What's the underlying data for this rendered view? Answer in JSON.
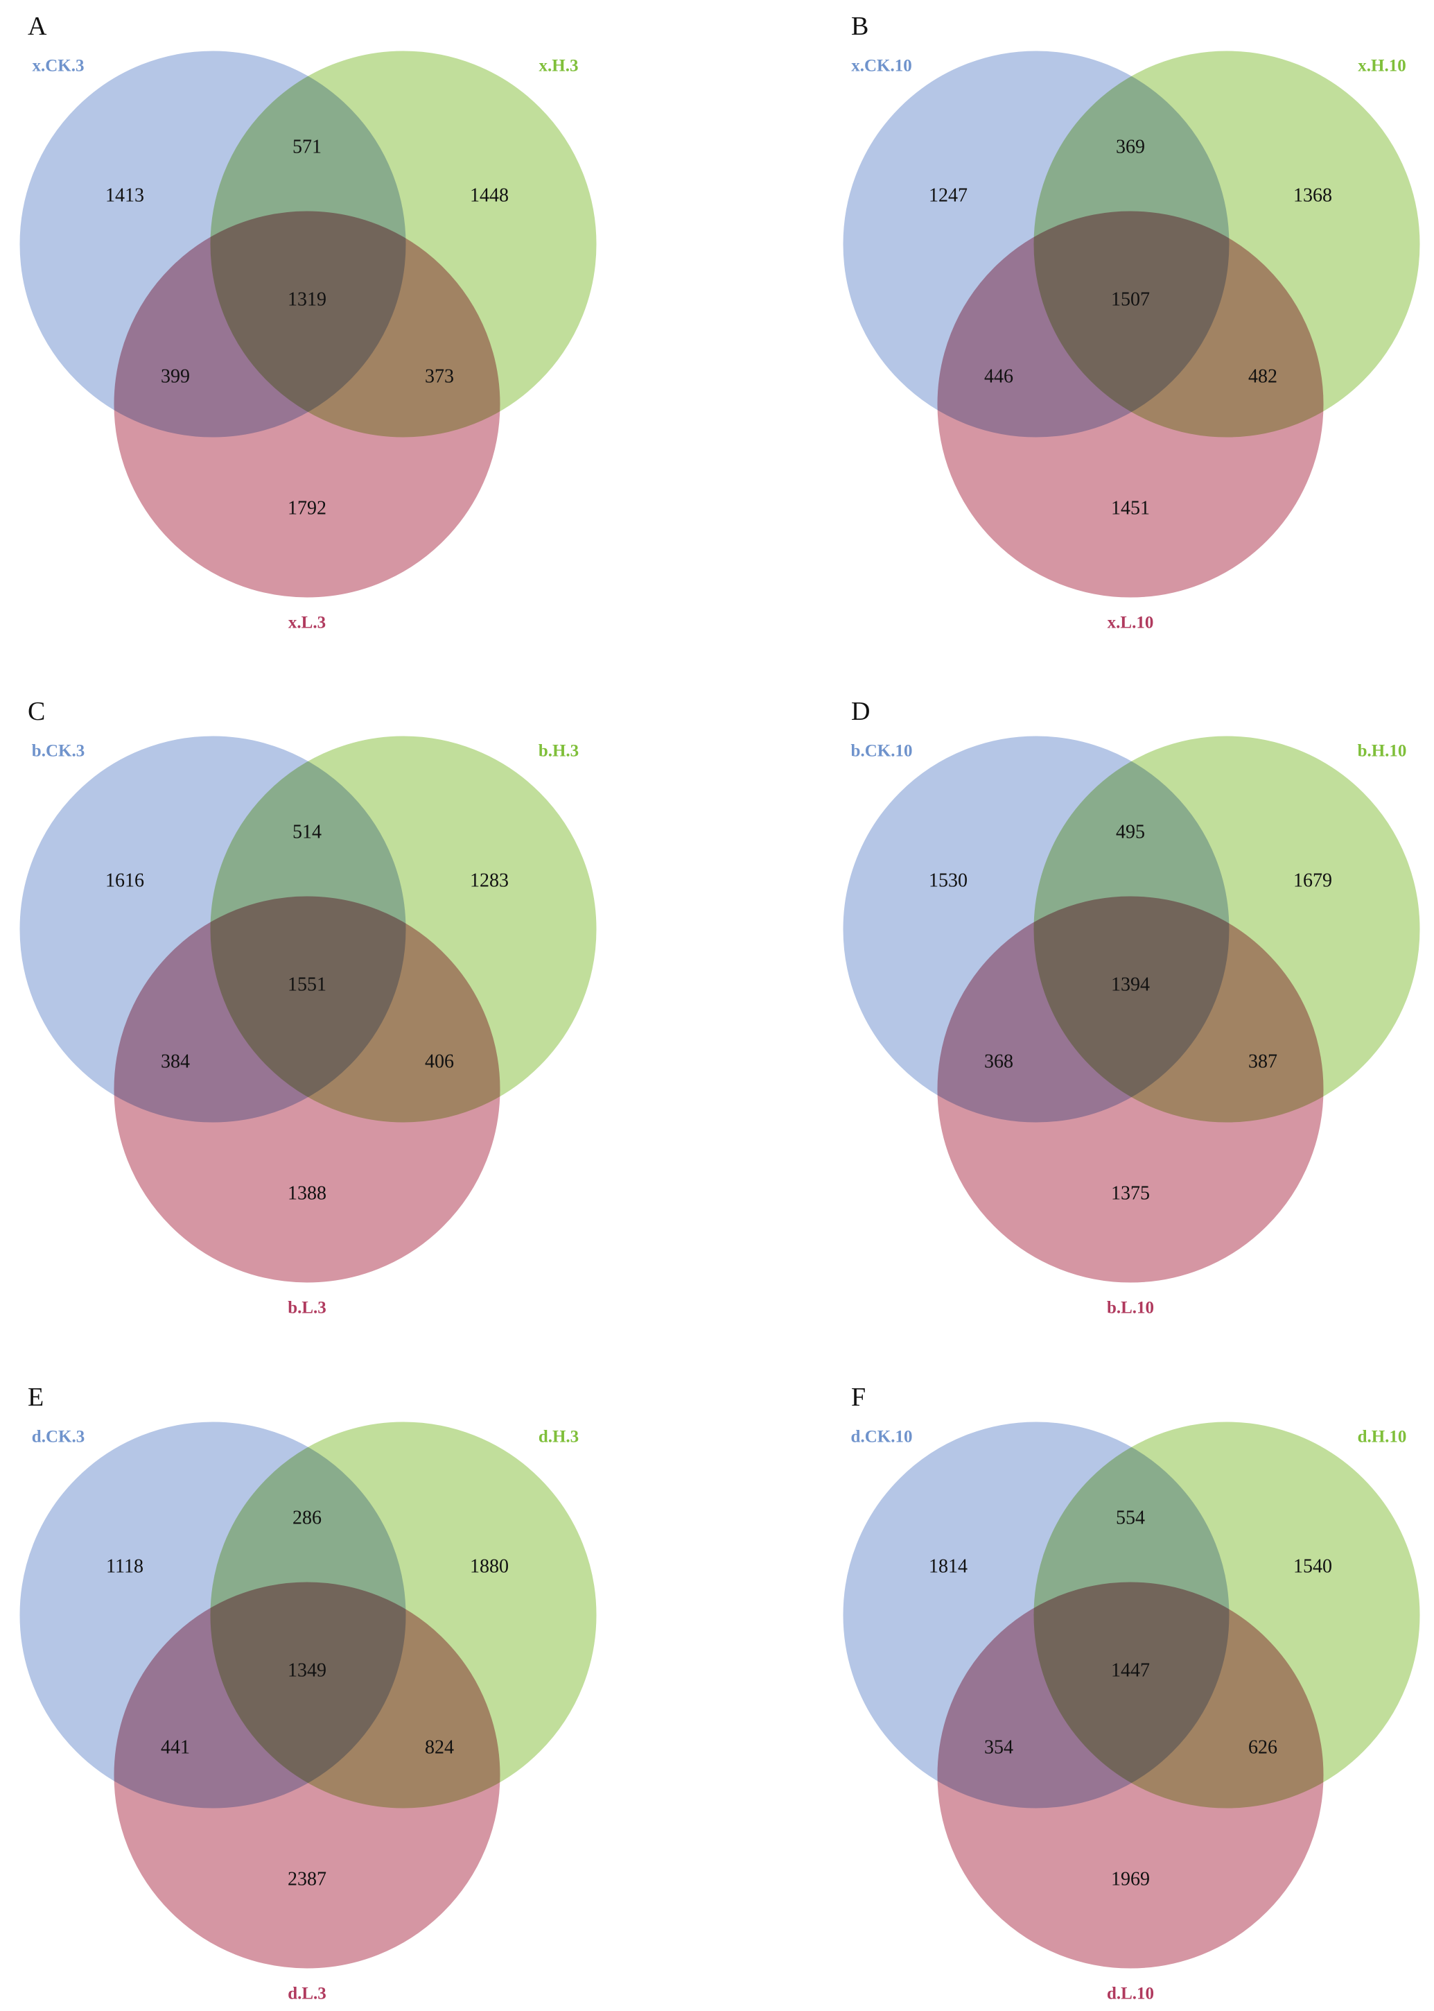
{
  "figure": {
    "colors": {
      "set_a": "#b5c6e6",
      "set_b": "#c1de9b",
      "set_c": "#d596a3",
      "label_a": "#6f93cc",
      "label_b": "#7fbf3a",
      "label_c": "#b03a5e"
    },
    "panels": [
      {
        "letter": "A",
        "labels": {
          "a": "x.CK.3",
          "b": "x.H.3",
          "c": "x.L.3"
        },
        "counts": {
          "only_a": "1413",
          "only_b": "1448",
          "only_c": "1792",
          "ab": "571",
          "ac": "399",
          "bc": "373",
          "abc": "1319"
        }
      },
      {
        "letter": "B",
        "labels": {
          "a": "x.CK.10",
          "b": "x.H.10",
          "c": "x.L.10"
        },
        "counts": {
          "only_a": "1247",
          "only_b": "1368",
          "only_c": "1451",
          "ab": "369",
          "ac": "446",
          "bc": "482",
          "abc": "1507"
        }
      },
      {
        "letter": "C",
        "labels": {
          "a": "b.CK.3",
          "b": "b.H.3",
          "c": "b.L.3"
        },
        "counts": {
          "only_a": "1616",
          "only_b": "1283",
          "only_c": "1388",
          "ab": "514",
          "ac": "384",
          "bc": "406",
          "abc": "1551"
        }
      },
      {
        "letter": "D",
        "labels": {
          "a": "b.CK.10",
          "b": "b.H.10",
          "c": "b.L.10"
        },
        "counts": {
          "only_a": "1530",
          "only_b": "1679",
          "only_c": "1375",
          "ab": "495",
          "ac": "368",
          "bc": "387",
          "abc": "1394"
        }
      },
      {
        "letter": "E",
        "labels": {
          "a": "d.CK.3",
          "b": "d.H.3",
          "c": "d.L.3"
        },
        "counts": {
          "only_a": "1118",
          "only_b": "1880",
          "only_c": "2387",
          "ab": "286",
          "ac": "441",
          "bc": "824",
          "abc": "1349"
        }
      },
      {
        "letter": "F",
        "labels": {
          "a": "d.CK.10",
          "b": "d.H.10",
          "c": "d.L.10"
        },
        "counts": {
          "only_a": "1814",
          "only_b": "1540",
          "only_c": "1969",
          "ab": "554",
          "ac": "354",
          "bc": "626",
          "abc": "1447"
        }
      }
    ]
  }
}
